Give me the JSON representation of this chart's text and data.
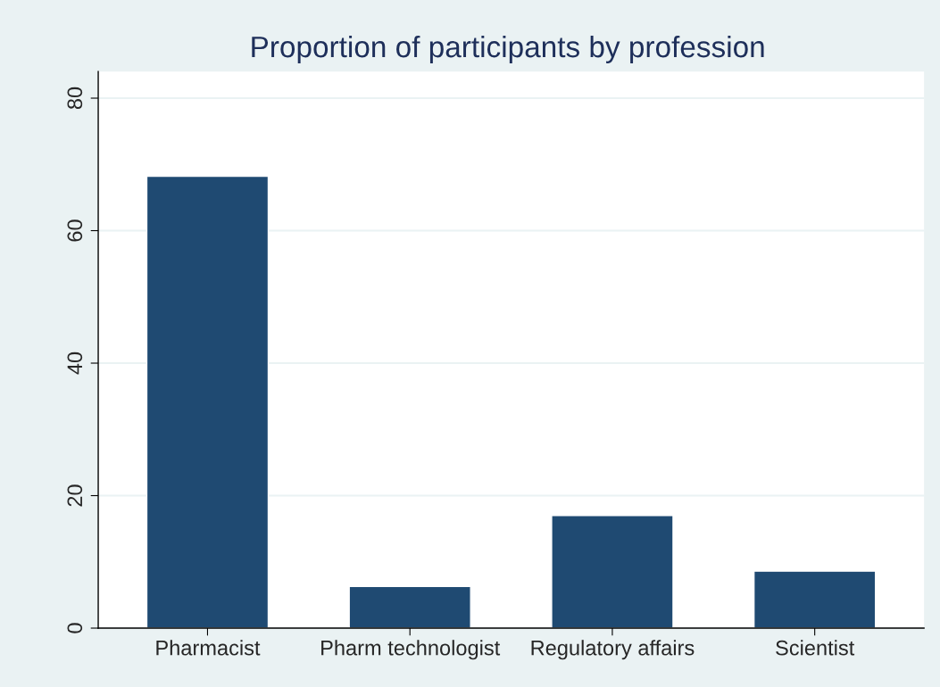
{
  "chart_data": {
    "type": "bar",
    "title": "Proportion of participants by profession",
    "categories": [
      "Pharmacist",
      "Pharm technologist",
      "Regulatory affairs",
      "Scientist"
    ],
    "values": [
      68.2,
      6.3,
      17.0,
      8.6
    ],
    "color": "#1f4a72",
    "ylim": [
      0,
      84
    ],
    "yticks": [
      0,
      20,
      40,
      60,
      80
    ],
    "grid": "y",
    "legend": false
  }
}
